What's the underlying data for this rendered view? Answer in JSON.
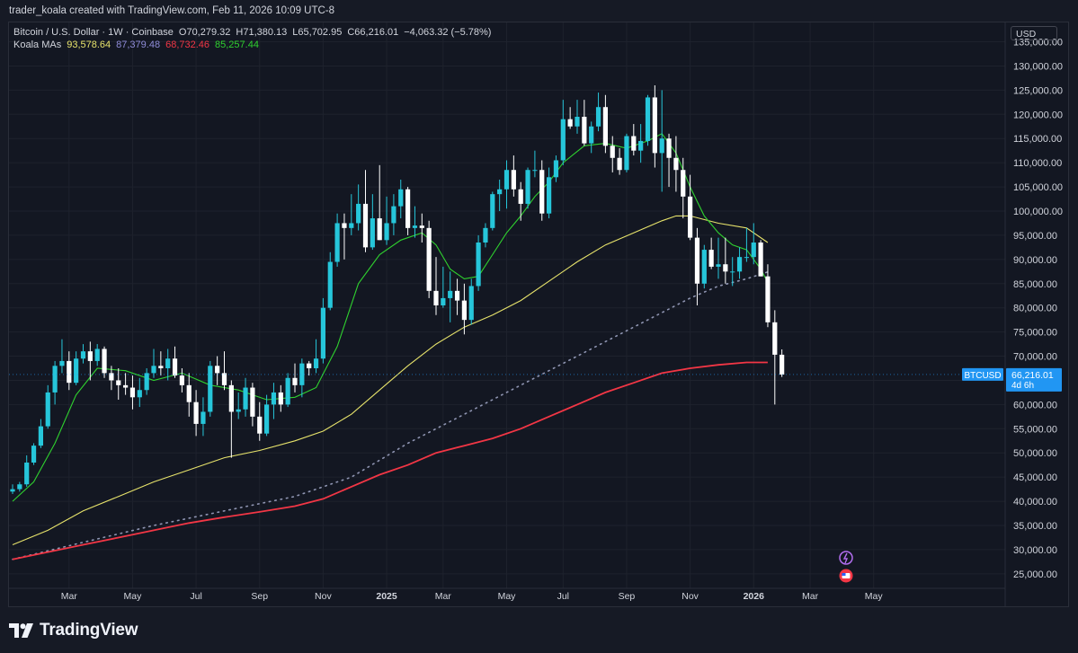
{
  "header": {
    "attribution": "trader_koala created with TradingView.com, Feb 11, 2026 10:09 UTC-8"
  },
  "legend": {
    "symbol": "Bitcoin / U.S. Dollar · 1W · Coinbase",
    "ohlc": {
      "open": "O70,279.32",
      "high": "H71,380.13",
      "low": "L65,702.95",
      "close": "C66,216.01",
      "change": "−4,063.32 (−5.78%)"
    },
    "indicator_name": "Koala MAs",
    "ma_values": [
      {
        "value": "93,578.64",
        "color": "#e7e36b"
      },
      {
        "value": "87,379.48",
        "color": "#8f8cd9"
      },
      {
        "value": "68,732.46",
        "color": "#f23645"
      },
      {
        "value": "85,257.44",
        "color": "#2fd12f"
      }
    ]
  },
  "price_axis": {
    "currency": "USD",
    "labels": [
      "135,000.00",
      "130,000.00",
      "125,000.00",
      "120,000.00",
      "115,000.00",
      "110,000.00",
      "105,000.00",
      "100,000.00",
      "95,000.00",
      "90,000.00",
      "85,000.00",
      "80,000.00",
      "75,000.00",
      "70,000.00",
      "65,000.00",
      "60,000.00",
      "55,000.00",
      "50,000.00",
      "45,000.00",
      "40,000.00",
      "35,000.00",
      "30,000.00",
      "25,000.00"
    ],
    "price_tag": {
      "symbol": "BTCUSD",
      "price": "66,216.01",
      "countdown": "4d 6h"
    }
  },
  "footer": {
    "brand": "TradingView"
  },
  "colors": {
    "up": "#26c6da",
    "down": "#ffffff",
    "grid": "#1e222d",
    "ma_yellow": "#e7e36b",
    "ma_red": "#f23645",
    "ma_green": "#2fd12f",
    "ma_dotted": "#8f95b2",
    "tag_bg": "#2196f3"
  },
  "chart_data": {
    "type": "candlestick",
    "interval": "1W",
    "ylim": [
      22000,
      139000
    ],
    "y_ticks": [
      25000,
      30000,
      35000,
      40000,
      45000,
      50000,
      55000,
      60000,
      65000,
      70000,
      75000,
      80000,
      85000,
      90000,
      95000,
      100000,
      105000,
      110000,
      115000,
      120000,
      125000,
      130000,
      135000
    ],
    "x_tick_labels": [
      "Mar",
      "May",
      "Jul",
      "Sep",
      "Nov",
      "2025",
      "Mar",
      "May",
      "Jul",
      "Sep",
      "Nov",
      "2026",
      "Mar",
      "May"
    ],
    "x_tick_weeks": [
      8,
      17,
      26,
      35,
      44,
      53,
      61,
      70,
      78,
      87,
      96,
      105,
      113,
      122
    ],
    "year_labels": [
      "2025",
      "2026"
    ],
    "start_date": "2024-01-08",
    "candles": [
      [
        42000,
        43500,
        41500,
        42500
      ],
      [
        42500,
        44000,
        42000,
        43500
      ],
      [
        43500,
        49500,
        43000,
        48000
      ],
      [
        48000,
        52000,
        47500,
        51500
      ],
      [
        51500,
        57000,
        51000,
        55500
      ],
      [
        55500,
        64000,
        55000,
        62500
      ],
      [
        62500,
        69000,
        60000,
        68000
      ],
      [
        68000,
        73500,
        66500,
        69000
      ],
      [
        69000,
        71000,
        63000,
        64500
      ],
      [
        64500,
        71000,
        64000,
        69500
      ],
      [
        69500,
        72500,
        68500,
        71000
      ],
      [
        71000,
        73000,
        65000,
        69000
      ],
      [
        69000,
        72500,
        68000,
        71500
      ],
      [
        71500,
        72000,
        65500,
        66500
      ],
      [
        66500,
        68000,
        63000,
        65000
      ],
      [
        65000,
        67500,
        61000,
        64000
      ],
      [
        64000,
        66500,
        62000,
        63500
      ],
      [
        63500,
        66000,
        59000,
        61500
      ],
      [
        61500,
        65500,
        59500,
        63000
      ],
      [
        63000,
        67500,
        62000,
        66500
      ],
      [
        66500,
        71500,
        65500,
        68000
      ],
      [
        68000,
        71000,
        66000,
        67500
      ],
      [
        67500,
        71500,
        65000,
        69500
      ],
      [
        69500,
        72000,
        65500,
        66000
      ],
      [
        66000,
        67500,
        62500,
        64000
      ],
      [
        64000,
        66500,
        57500,
        60500
      ],
      [
        60500,
        63000,
        53500,
        56000
      ],
      [
        56000,
        61500,
        53500,
        58500
      ],
      [
        58500,
        69000,
        57500,
        68000
      ],
      [
        68000,
        70000,
        64000,
        66500
      ],
      [
        66500,
        71000,
        63000,
        64000
      ],
      [
        64000,
        65000,
        49000,
        58500
      ],
      [
        58500,
        62500,
        57000,
        59000
      ],
      [
        59000,
        65500,
        57500,
        63500
      ],
      [
        63500,
        64500,
        55500,
        57500
      ],
      [
        57500,
        60500,
        52500,
        54000
      ],
      [
        54000,
        62000,
        53500,
        60000
      ],
      [
        60000,
        64500,
        57000,
        62500
      ],
      [
        62500,
        64000,
        58500,
        60000
      ],
      [
        60000,
        66500,
        59500,
        65500
      ],
      [
        65500,
        68500,
        62500,
        64000
      ],
      [
        64000,
        69500,
        61500,
        68500
      ],
      [
        68500,
        69000,
        66000,
        67500
      ],
      [
        67500,
        73500,
        66500,
        69500
      ],
      [
        69500,
        82000,
        68500,
        80000
      ],
      [
        80000,
        91500,
        79500,
        89500
      ],
      [
        89500,
        99500,
        88500,
        97500
      ],
      [
        97500,
        99500,
        90000,
        96500
      ],
      [
        96500,
        103500,
        95000,
        97500
      ],
      [
        97500,
        105500,
        96000,
        101500
      ],
      [
        101500,
        108500,
        91500,
        92500
      ],
      [
        92500,
        103500,
        92000,
        98500
      ],
      [
        98500,
        109500,
        94000,
        94000
      ],
      [
        94000,
        103000,
        93000,
        97500
      ],
      [
        97500,
        103500,
        95000,
        101000
      ],
      [
        101000,
        106500,
        98500,
        104500
      ],
      [
        104500,
        105000,
        95000,
        96500
      ],
      [
        96500,
        101000,
        94500,
        97000
      ],
      [
        97000,
        99500,
        93500,
        96500
      ],
      [
        96500,
        98000,
        82000,
        83500
      ],
      [
        83500,
        90500,
        78500,
        80500
      ],
      [
        80500,
        88500,
        80000,
        82000
      ],
      [
        82000,
        87500,
        77000,
        83500
      ],
      [
        83500,
        86000,
        78500,
        81500
      ],
      [
        81500,
        85000,
        74500,
        77500
      ],
      [
        77500,
        86000,
        76500,
        84500
      ],
      [
        84500,
        95000,
        83500,
        93500
      ],
      [
        93500,
        97500,
        92500,
        96500
      ],
      [
        96500,
        104000,
        96000,
        103500
      ],
      [
        103500,
        106500,
        100000,
        104500
      ],
      [
        104500,
        110500,
        100500,
        108500
      ],
      [
        108500,
        111500,
        103000,
        104500
      ],
      [
        104500,
        106000,
        98000,
        101500
      ],
      [
        101500,
        109000,
        100500,
        108500
      ],
      [
        108500,
        112500,
        107000,
        108500
      ],
      [
        108500,
        110500,
        98000,
        99500
      ],
      [
        99500,
        109000,
        98500,
        107000
      ],
      [
        107000,
        111500,
        106000,
        110500
      ],
      [
        110500,
        123000,
        109500,
        119000
      ],
      [
        119000,
        121500,
        117000,
        117500
      ],
      [
        117500,
        123000,
        116000,
        119500
      ],
      [
        119500,
        123000,
        113500,
        114000
      ],
      [
        114000,
        118500,
        112000,
        117500
      ],
      [
        117500,
        124500,
        116500,
        121500
      ],
      [
        121500,
        124000,
        112000,
        113500
      ],
      [
        113500,
        115500,
        108000,
        111000
      ],
      [
        111000,
        113000,
        107500,
        108500
      ],
      [
        108500,
        116000,
        108000,
        115500
      ],
      [
        115500,
        118000,
        111500,
        112500
      ],
      [
        112500,
        118000,
        110000,
        114500
      ],
      [
        114500,
        124000,
        113500,
        123500
      ],
      [
        123500,
        126000,
        109000,
        112000
      ],
      [
        112000,
        125000,
        104000,
        115000
      ],
      [
        115000,
        116000,
        105000,
        111000
      ],
      [
        111000,
        115500,
        104000,
        108500
      ],
      [
        108500,
        111000,
        98500,
        103000
      ],
      [
        103000,
        107500,
        94000,
        94500
      ],
      [
        94500,
        96500,
        80500,
        85000
      ],
      [
        85000,
        93000,
        84000,
        92000
      ],
      [
        92000,
        94500,
        88000,
        88500
      ],
      [
        88500,
        94500,
        86000,
        89000
      ],
      [
        89000,
        94500,
        85000,
        87500
      ],
      [
        87500,
        90500,
        84500,
        87500
      ],
      [
        87500,
        92500,
        86000,
        90500
      ],
      [
        90500,
        96500,
        89500,
        90500
      ],
      [
        90500,
        97500,
        89000,
        93500
      ],
      [
        93500,
        94000,
        86500,
        86500
      ],
      [
        86500,
        89000,
        76000,
        77000
      ],
      [
        77000,
        79500,
        60000,
        70300
      ],
      [
        70300,
        71400,
        65700,
        66200
      ]
    ],
    "ma_yellow": [
      [
        0,
        31000
      ],
      [
        5,
        34000
      ],
      [
        10,
        38000
      ],
      [
        15,
        41000
      ],
      [
        20,
        44000
      ],
      [
        25,
        46500
      ],
      [
        30,
        49000
      ],
      [
        35,
        50500
      ],
      [
        40,
        52500
      ],
      [
        44,
        54500
      ],
      [
        48,
        58000
      ],
      [
        52,
        63000
      ],
      [
        56,
        68000
      ],
      [
        60,
        72500
      ],
      [
        64,
        76000
      ],
      [
        68,
        78500
      ],
      [
        72,
        81500
      ],
      [
        76,
        85500
      ],
      [
        80,
        89500
      ],
      [
        84,
        93000
      ],
      [
        88,
        95500
      ],
      [
        92,
        98000
      ],
      [
        94,
        99000
      ],
      [
        96,
        99000
      ],
      [
        100,
        97500
      ],
      [
        104,
        96500
      ],
      [
        107,
        93500
      ]
    ],
    "ma_red": [
      [
        0,
        28000
      ],
      [
        5,
        29500
      ],
      [
        10,
        31000
      ],
      [
        15,
        32500
      ],
      [
        20,
        34000
      ],
      [
        25,
        35500
      ],
      [
        30,
        36700
      ],
      [
        35,
        37800
      ],
      [
        40,
        39000
      ],
      [
        44,
        40500
      ],
      [
        48,
        43000
      ],
      [
        52,
        45500
      ],
      [
        56,
        47500
      ],
      [
        60,
        50000
      ],
      [
        64,
        51500
      ],
      [
        68,
        53000
      ],
      [
        72,
        55000
      ],
      [
        76,
        57500
      ],
      [
        80,
        60000
      ],
      [
        84,
        62500
      ],
      [
        88,
        64500
      ],
      [
        92,
        66500
      ],
      [
        96,
        67500
      ],
      [
        100,
        68200
      ],
      [
        104,
        68700
      ],
      [
        107,
        68700
      ]
    ],
    "ma_dotted": [
      [
        0,
        28000
      ],
      [
        10,
        31500
      ],
      [
        20,
        35000
      ],
      [
        30,
        38000
      ],
      [
        40,
        41000
      ],
      [
        48,
        45000
      ],
      [
        56,
        52000
      ],
      [
        64,
        58000
      ],
      [
        72,
        64000
      ],
      [
        80,
        70000
      ],
      [
        88,
        76000
      ],
      [
        96,
        82000
      ],
      [
        100,
        84500
      ],
      [
        104,
        86000
      ],
      [
        107,
        87400
      ]
    ],
    "ma_green": [
      [
        0,
        40000
      ],
      [
        3,
        44000
      ],
      [
        6,
        52000
      ],
      [
        9,
        62000
      ],
      [
        12,
        67500
      ],
      [
        16,
        67000
      ],
      [
        20,
        65000
      ],
      [
        24,
        66500
      ],
      [
        28,
        64000
      ],
      [
        32,
        63000
      ],
      [
        36,
        61000
      ],
      [
        40,
        61500
      ],
      [
        43,
        63500
      ],
      [
        46,
        72000
      ],
      [
        49,
        85000
      ],
      [
        52,
        91000
      ],
      [
        55,
        94000
      ],
      [
        58,
        95500
      ],
      [
        60,
        93000
      ],
      [
        62,
        88000
      ],
      [
        64,
        86000
      ],
      [
        66,
        86500
      ],
      [
        68,
        91000
      ],
      [
        70,
        95500
      ],
      [
        72,
        99000
      ],
      [
        74,
        103000
      ],
      [
        76,
        106000
      ],
      [
        78,
        110000
      ],
      [
        81,
        113500
      ],
      [
        84,
        114000
      ],
      [
        87,
        113000
      ],
      [
        90,
        114500
      ],
      [
        92,
        116000
      ],
      [
        94,
        112000
      ],
      [
        96,
        105000
      ],
      [
        98,
        99000
      ],
      [
        100,
        95500
      ],
      [
        102,
        93000
      ],
      [
        104,
        92000
      ],
      [
        106,
        88000
      ],
      [
        107,
        85300
      ]
    ]
  }
}
